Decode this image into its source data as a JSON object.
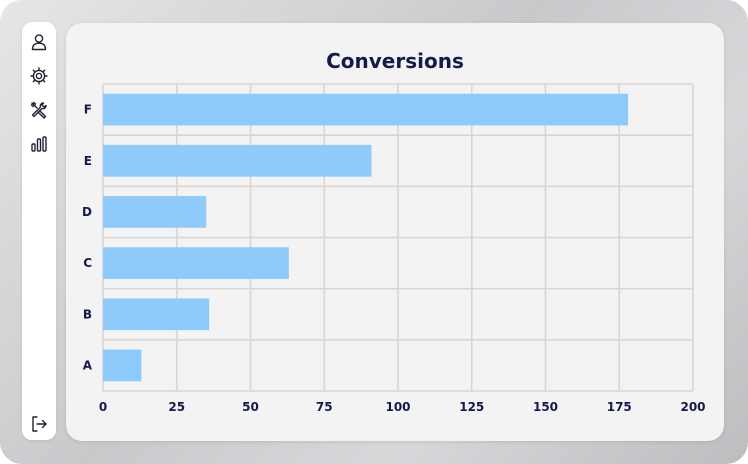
{
  "sidebar": {
    "items": [
      {
        "icon": "user-icon"
      },
      {
        "icon": "gear-icon"
      },
      {
        "icon": "tools-icon"
      },
      {
        "icon": "bar-chart-icon"
      }
    ],
    "footer_icon": "logout-icon"
  },
  "chart_data": {
    "type": "bar",
    "orientation": "horizontal",
    "title": "Conversions",
    "xlabel": "",
    "ylabel": "",
    "categories": [
      "A",
      "B",
      "C",
      "D",
      "E",
      "F"
    ],
    "values": [
      13,
      36,
      63,
      35,
      91,
      178
    ],
    "xlim": [
      0,
      200
    ],
    "xticks": [
      "0",
      "25",
      "50",
      "75",
      "100",
      "125",
      "150",
      "175",
      "200"
    ],
    "grid": true,
    "bar_color": "#8ecbfb",
    "grid_color": "#d9d5d3"
  }
}
